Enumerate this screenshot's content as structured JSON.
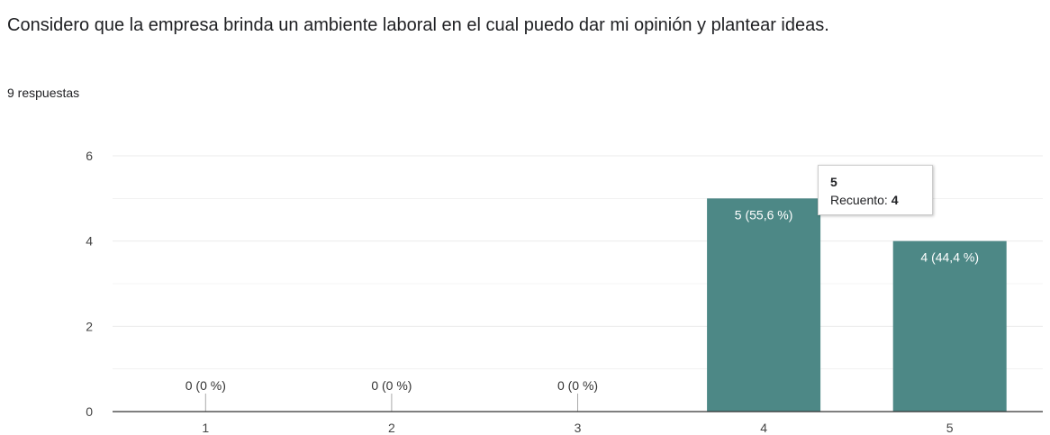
{
  "question": {
    "title": "Considero que la empresa brinda un ambiente laboral en el cual puedo dar mi opinión y plantear ideas.",
    "response_count": "9 respuestas"
  },
  "colors": {
    "bar": "#4d8886",
    "grid": "#ebebeb",
    "axis": "#333333",
    "bar_label_outside": "#333333",
    "bar_label_inside": "#ffffff"
  },
  "tooltip": {
    "category": "5",
    "label": "Recuento:",
    "value": "4"
  },
  "chart_data": {
    "type": "bar",
    "categories": [
      "1",
      "2",
      "3",
      "4",
      "5"
    ],
    "values": [
      0,
      0,
      0,
      5,
      4
    ],
    "data_labels": [
      "0 (0 %)",
      "0 (0 %)",
      "0 (0 %)",
      "5 (55,6 %)",
      "4 (44,4 %)"
    ],
    "yticks": [
      0,
      2,
      4,
      6
    ],
    "ylim": [
      0,
      6
    ],
    "title": "",
    "xlabel": "",
    "ylabel": "",
    "grid": true
  }
}
